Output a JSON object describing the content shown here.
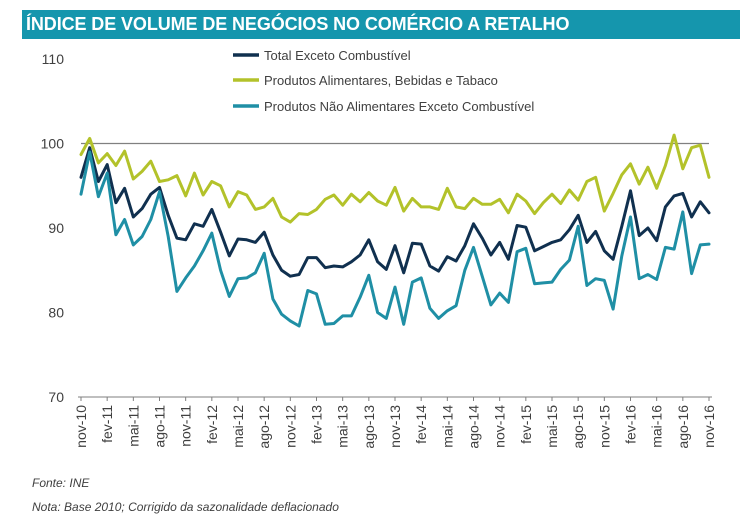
{
  "header": {
    "title": "ÍNDICE DE VOLUME DE NEGÓCIOS NO COMÉRCIO A RETALHO"
  },
  "footer": {
    "source": "Fonte: INE",
    "note": "Nota: Base 2010; Corrigido da sazonalidade deflacionado"
  },
  "colors": {
    "title_bg": "#1596ad",
    "total": "#10304f",
    "alimentares": "#b3c22a",
    "nao_alimentares": "#1f8fa5",
    "ref_line": "#808080"
  },
  "chart_data": {
    "type": "line",
    "title": "ÍNDICE DE VOLUME DE NEGÓCIOS NO COMÉRCIO A RETALHO",
    "xlabel": "",
    "ylabel": "",
    "ylim": [
      70,
      110
    ],
    "yticks": [
      70,
      80,
      90,
      100,
      110
    ],
    "reference_line": 100,
    "grid": false,
    "legend_position": "top-center",
    "x_tick_labels": [
      "nov-10",
      "fev-11",
      "mai-11",
      "ago-11",
      "nov-11",
      "fev-12",
      "mai-12",
      "ago-12",
      "nov-12",
      "fev-13",
      "mai-13",
      "ago-13",
      "nov-13",
      "fev-14",
      "mai-14",
      "ago-14",
      "nov-14",
      "fev-15",
      "mai-15",
      "ago-15",
      "nov-15",
      "fev-16",
      "mai-16",
      "ago-16",
      "nov-16"
    ],
    "series": [
      {
        "name": "Total Exceto Combustível",
        "color": "#10304f",
        "values": [
          96.0,
          99.5,
          95.5,
          97.5,
          93.0,
          94.7,
          91.3,
          92.3,
          94.0,
          94.8,
          91.5,
          88.8,
          88.6,
          90.5,
          90.2,
          92.2,
          89.5,
          86.7,
          88.7,
          88.6,
          88.3,
          89.5,
          86.8,
          85.0,
          84.3,
          84.5,
          86.5,
          86.5,
          85.3,
          85.5,
          85.4,
          86.0,
          86.8,
          88.6,
          86.0,
          85.1,
          87.9,
          84.7,
          88.2,
          88.1,
          85.5,
          84.9,
          86.6,
          86.1,
          87.9,
          90.5,
          88.8,
          86.8,
          88.3,
          86.3,
          90.3,
          90.1,
          87.3,
          87.8,
          88.3,
          88.6,
          89.8,
          91.5,
          88.3,
          89.6,
          87.3,
          86.3,
          90.2,
          94.4,
          89.1,
          90.0,
          88.5,
          92.5,
          93.8,
          94.1,
          91.3,
          93.1,
          91.8
        ]
      },
      {
        "name": "Produtos Alimentares, Bebidas e Tabaco",
        "color": "#b3c22a",
        "values": [
          98.7,
          100.6,
          97.7,
          98.8,
          97.4,
          99.1,
          95.8,
          96.7,
          97.9,
          95.5,
          95.7,
          96.2,
          93.8,
          96.5,
          93.9,
          95.5,
          95.0,
          92.5,
          94.3,
          93.9,
          92.2,
          92.5,
          93.5,
          91.3,
          90.7,
          91.7,
          91.6,
          92.2,
          93.4,
          93.9,
          92.7,
          94.0,
          93.1,
          94.2,
          93.2,
          92.7,
          94.8,
          92.0,
          93.5,
          92.5,
          92.5,
          92.2,
          94.7,
          92.5,
          92.3,
          93.5,
          92.8,
          92.8,
          93.4,
          91.8,
          94.0,
          93.2,
          91.7,
          93.0,
          94.0,
          92.9,
          94.5,
          93.3,
          95.5,
          96.0,
          92.0,
          94.1,
          96.3,
          97.6,
          95.2,
          97.2,
          94.7,
          97.4,
          101.0,
          97.0,
          99.5,
          99.8,
          96.0
        ]
      },
      {
        "name": "Produtos Não Alimentares Exceto Combustível",
        "color": "#1f8fa5",
        "values": [
          94.0,
          99.0,
          93.7,
          96.5,
          89.2,
          91.0,
          88.0,
          89.0,
          91.0,
          94.3,
          89.0,
          82.5,
          84.1,
          85.5,
          87.3,
          89.4,
          85.0,
          81.9,
          84.0,
          84.1,
          84.7,
          87.0,
          81.6,
          79.8,
          79.0,
          78.4,
          82.6,
          82.2,
          78.6,
          78.7,
          79.6,
          79.6,
          81.8,
          84.4,
          80.0,
          79.3,
          83.0,
          78.6,
          83.6,
          84.1,
          80.5,
          79.3,
          80.2,
          80.8,
          85.0,
          87.7,
          84.3,
          80.9,
          82.3,
          81.2,
          87.2,
          87.6,
          83.4,
          83.5,
          83.6,
          85.1,
          86.2,
          90.2,
          83.2,
          84.0,
          83.8,
          80.4,
          86.7,
          91.3,
          84.0,
          84.5,
          83.9,
          87.7,
          87.5,
          91.9,
          84.6,
          88.0,
          88.1
        ]
      }
    ]
  }
}
